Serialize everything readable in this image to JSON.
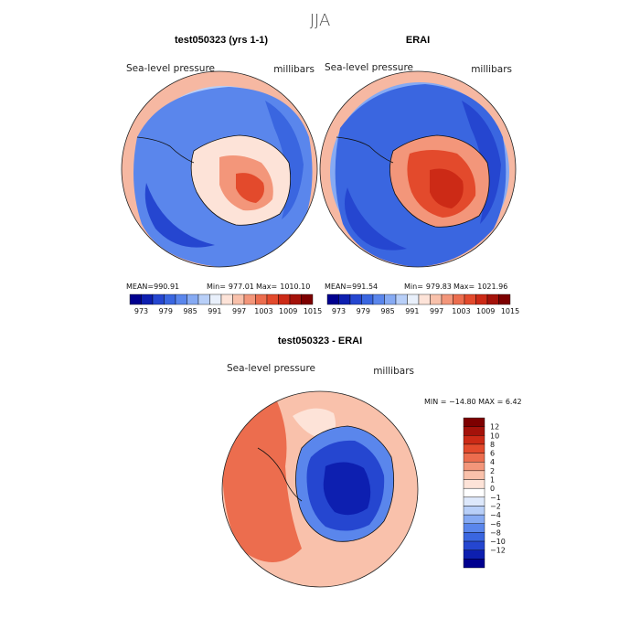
{
  "figure_title": "JJA",
  "colors": {
    "model_map": {
      "ocean": "#3d7ee8",
      "deep": "#2454d0",
      "land_center": "#e8502e",
      "rim": "#f6b8a2",
      "continent_outline": "#111111"
    },
    "diff_map": {
      "west": "#ec6d4e",
      "ice": "#1b3cc4",
      "core": "#0b1f9e"
    }
  },
  "panels": [
    {
      "title": "test050323 (yrs 1-1)",
      "field_label": "Sea-level pressure",
      "units": "millibars",
      "stats": {
        "mean_label": "MEAN=",
        "mean": "990.91",
        "min_label": "Min=",
        "min": "977.01",
        "max_label": "Max=",
        "max": "1010.10"
      }
    },
    {
      "title": "ERAI",
      "field_label": "Sea-level pressure",
      "units": "millibars",
      "stats": {
        "mean_label": "MEAN=",
        "mean": "991.54",
        "min_label": "Min=",
        "min": "979.83",
        "max_label": "Max=",
        "max": "1021.96"
      }
    }
  ],
  "diff_panel": {
    "title": "test050323 - ERAI",
    "field_label": "Sea-level pressure",
    "units": "millibars",
    "minmax_text": "MIN = −14.80 MAX =    6.42"
  },
  "colorbar_top": {
    "colors": [
      "#00008f",
      "#0d1fb0",
      "#2546d0",
      "#3a66e0",
      "#5a86ec",
      "#86aaf3",
      "#b8cff8",
      "#e9f0fb",
      "#fde3d8",
      "#f9c1ab",
      "#f3967a",
      "#ec6d4e",
      "#e34a2c",
      "#cc2a16",
      "#a4120a",
      "#7d0000"
    ],
    "labels": [
      "973",
      "979",
      "985",
      "991",
      "997",
      "1003",
      "1009",
      "1015"
    ]
  },
  "colorbar_diff": {
    "colors": [
      "#7d0000",
      "#a4120a",
      "#cc2a16",
      "#e34a2c",
      "#ec6d4e",
      "#f3967a",
      "#f9c1ab",
      "#fde3d8",
      "#ffffff",
      "#dde8fb",
      "#b8cff8",
      "#86aaf3",
      "#5a86ec",
      "#3a66e0",
      "#2546d0",
      "#0d1fb0",
      "#00008f"
    ],
    "labels": [
      "12",
      "10",
      "8",
      "6",
      "4",
      "2",
      "1",
      "0",
      "−1",
      "−2",
      "−4",
      "−6",
      "−8",
      "−10",
      "−12"
    ]
  }
}
